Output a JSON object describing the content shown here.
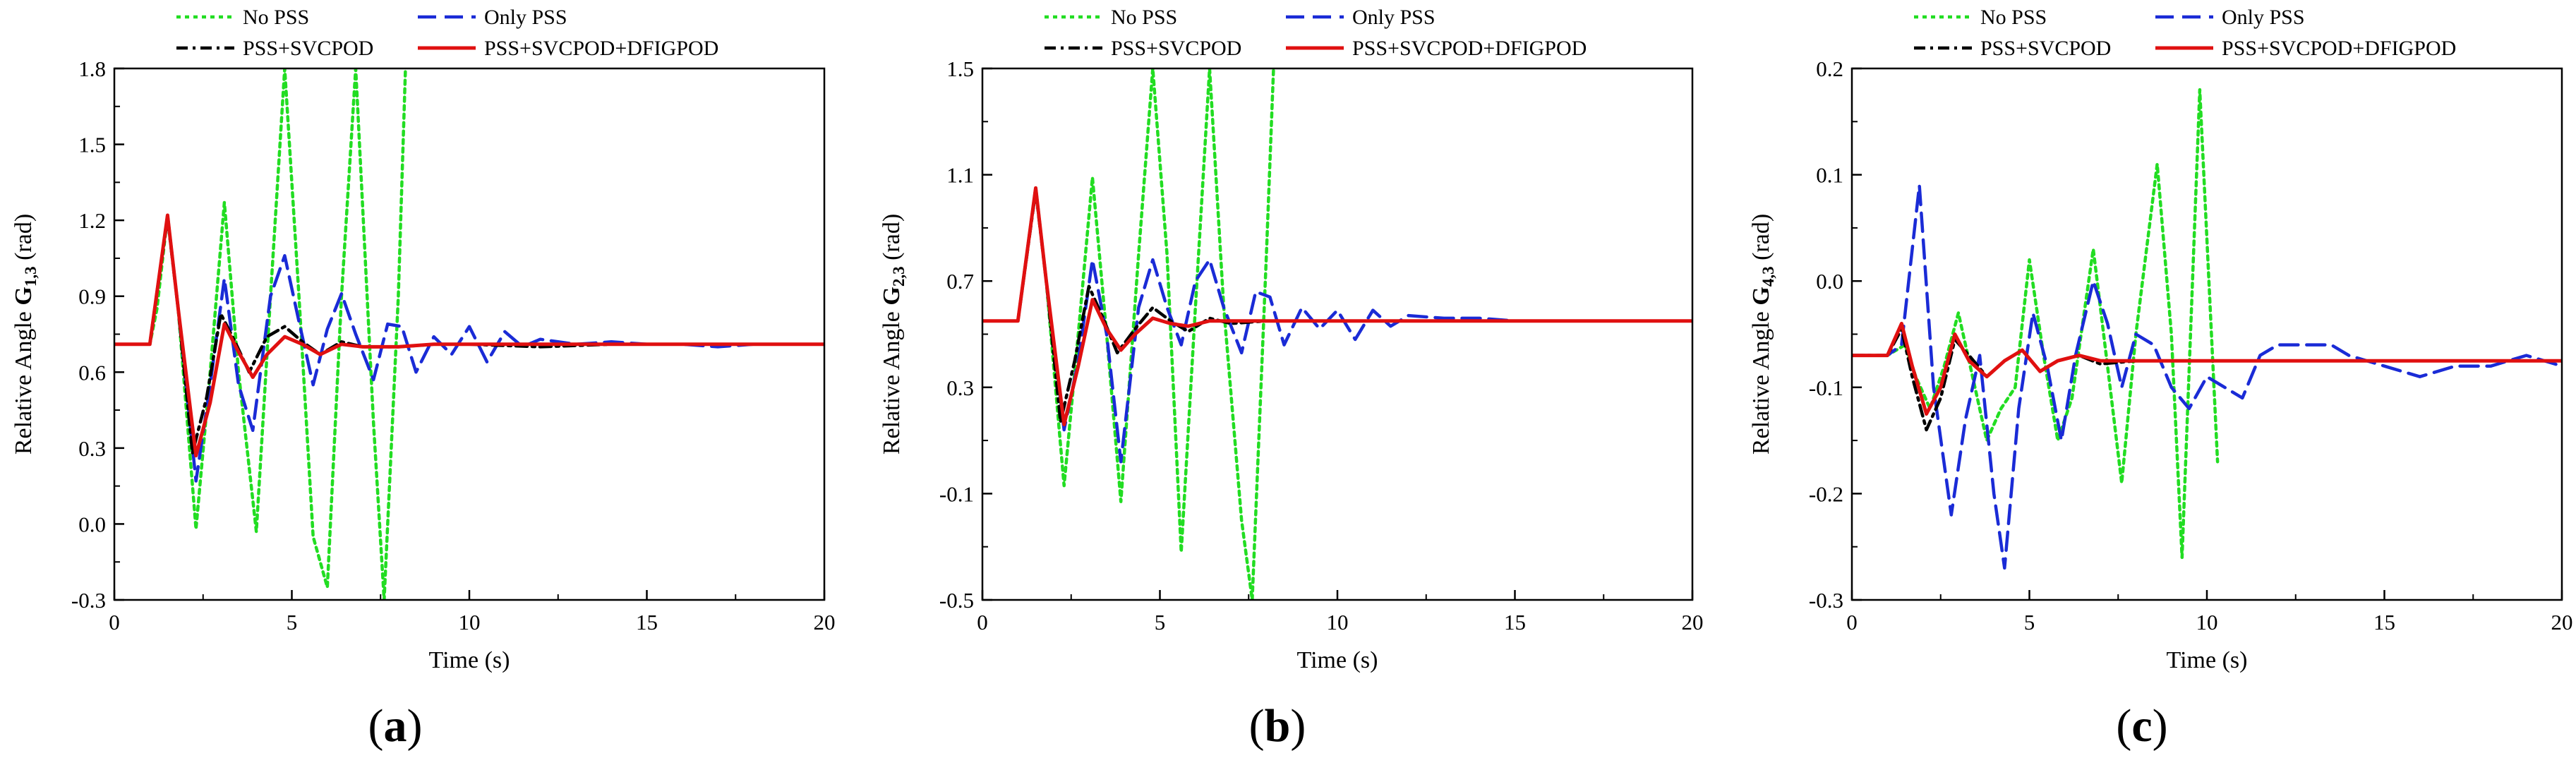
{
  "panel_labels": [
    "(a)",
    "(b)",
    "(c)"
  ],
  "legend": {
    "entries": [
      "No PSS",
      "Only PSS",
      "PSS+SVCPOD",
      "PSS+SVCPOD+DFIGPOD"
    ],
    "colors": [
      "#22dd22",
      "#1a2bd6",
      "#000000",
      "#e01010"
    ]
  },
  "chart_data": [
    {
      "type": "line",
      "title": "",
      "xlabel": "Time (s)",
      "ylabel": "Relative Angle G1,3 (rad)",
      "ylabel_parts": {
        "prefix": "Relative Angle ",
        "bold": "G",
        "sub": "1,3",
        "suffix": "  (rad)"
      },
      "xlim": [
        0,
        20
      ],
      "ylim": [
        -0.3,
        1.8
      ],
      "xticks": [
        "0",
        "5",
        "10",
        "15",
        "20"
      ],
      "yticks": [
        "-0.3",
        "0.0",
        "0.3",
        "0.6",
        "0.9",
        "1.2",
        "1.5",
        "1.8"
      ],
      "series": [
        {
          "name": "No PSS",
          "color": "#22dd22",
          "style": "dotted",
          "x": [
            0,
            1.0,
            1.2,
            1.5,
            1.8,
            2.3,
            2.7,
            3.1,
            3.5,
            4.0,
            4.4,
            4.8,
            5.2,
            5.6,
            6.0,
            6.4,
            6.8,
            7.3,
            7.6,
            8.0,
            8.2
          ],
          "y": [
            0.71,
            0.71,
            0.85,
            1.22,
            0.85,
            -0.02,
            0.6,
            1.27,
            0.6,
            -0.03,
            0.9,
            1.8,
            0.9,
            -0.05,
            -0.25,
            0.9,
            1.8,
            0.4,
            -0.3,
            0.9,
            1.8
          ]
        },
        {
          "name": "Only PSS",
          "color": "#1a2bd6",
          "style": "dashed",
          "x": [
            0,
            1.0,
            1.5,
            1.8,
            2.3,
            2.7,
            3.1,
            3.5,
            3.9,
            4.4,
            4.8,
            5.2,
            5.6,
            6.0,
            6.4,
            6.8,
            7.3,
            7.7,
            8.1,
            8.5,
            9.0,
            9.5,
            10.0,
            10.5,
            11.0,
            11.5,
            12.0,
            13.0,
            14.0,
            15.0,
            16.0,
            17.0,
            18.0,
            19.0,
            20.0
          ],
          "y": [
            0.71,
            0.71,
            1.22,
            0.85,
            0.17,
            0.55,
            0.97,
            0.55,
            0.37,
            0.9,
            1.06,
            0.8,
            0.55,
            0.77,
            0.91,
            0.75,
            0.57,
            0.79,
            0.78,
            0.6,
            0.74,
            0.67,
            0.78,
            0.64,
            0.76,
            0.7,
            0.73,
            0.71,
            0.72,
            0.71,
            0.71,
            0.7,
            0.71,
            0.71,
            0.71
          ]
        },
        {
          "name": "PSS+SVCPOD",
          "color": "#000000",
          "style": "dashdot",
          "x": [
            0,
            1.0,
            1.5,
            1.8,
            2.2,
            2.6,
            3.0,
            3.4,
            3.8,
            4.3,
            4.8,
            5.3,
            5.8,
            6.4,
            7.0,
            8.0,
            9.0,
            10.0,
            12.0,
            14.0,
            17.0,
            20.0
          ],
          "y": [
            0.71,
            0.71,
            1.21,
            0.85,
            0.28,
            0.5,
            0.83,
            0.72,
            0.6,
            0.74,
            0.78,
            0.72,
            0.67,
            0.72,
            0.7,
            0.7,
            0.71,
            0.71,
            0.7,
            0.71,
            0.71,
            0.71
          ]
        },
        {
          "name": "PSS+SVCPOD+DFIGPOD",
          "color": "#e01010",
          "style": "solid",
          "x": [
            0,
            1.0,
            1.5,
            1.8,
            2.3,
            2.7,
            3.1,
            3.5,
            3.9,
            4.3,
            4.8,
            5.3,
            5.8,
            6.4,
            7.0,
            8.0,
            9.0,
            10.0,
            12.0,
            14.0,
            17.0,
            20.0
          ],
          "y": [
            0.71,
            0.71,
            1.22,
            0.85,
            0.27,
            0.48,
            0.79,
            0.68,
            0.58,
            0.67,
            0.74,
            0.71,
            0.67,
            0.71,
            0.7,
            0.7,
            0.71,
            0.71,
            0.71,
            0.71,
            0.71,
            0.71
          ]
        }
      ]
    },
    {
      "type": "line",
      "title": "",
      "xlabel": "Time (s)",
      "ylabel": "Relative Angle G2,3 (rad)",
      "ylabel_parts": {
        "prefix": "Relative Angle ",
        "bold": "G",
        "sub": "2,3",
        "suffix": "  (rad)"
      },
      "xlim": [
        0,
        20
      ],
      "ylim": [
        -0.5,
        1.5
      ],
      "xticks": [
        "0",
        "5",
        "10",
        "15",
        "20"
      ],
      "yticks": [
        "-0.5",
        "-0.1",
        "0.3",
        "0.7",
        "1.1",
        "1.5"
      ],
      "series": [
        {
          "name": "No PSS",
          "color": "#22dd22",
          "style": "dotted",
          "x": [
            0,
            1.0,
            1.5,
            1.8,
            2.3,
            2.7,
            3.1,
            3.5,
            3.9,
            4.4,
            4.8,
            5.2,
            5.6,
            6.0,
            6.4,
            6.8,
            7.3,
            7.6,
            8.0,
            8.2
          ],
          "y": [
            0.55,
            0.55,
            1.05,
            0.7,
            -0.07,
            0.5,
            1.09,
            0.5,
            -0.13,
            0.8,
            1.5,
            0.8,
            -0.32,
            0.6,
            1.5,
            0.6,
            -0.2,
            -0.5,
            0.8,
            1.5
          ]
        },
        {
          "name": "Only PSS",
          "color": "#1a2bd6",
          "style": "dashed",
          "x": [
            0,
            1.0,
            1.5,
            1.8,
            2.3,
            2.7,
            3.1,
            3.5,
            3.9,
            4.4,
            4.8,
            5.2,
            5.6,
            6.0,
            6.4,
            6.8,
            7.3,
            7.7,
            8.1,
            8.5,
            9.0,
            9.5,
            10.0,
            10.5,
            11.0,
            11.5,
            12.0,
            13.0,
            14.0,
            15.0,
            16.0,
            17.0,
            18.0,
            19.0,
            20.0
          ],
          "y": [
            0.55,
            0.55,
            1.05,
            0.7,
            0.14,
            0.4,
            0.78,
            0.5,
            0.02,
            0.6,
            0.78,
            0.6,
            0.46,
            0.7,
            0.78,
            0.6,
            0.43,
            0.66,
            0.64,
            0.46,
            0.6,
            0.52,
            0.59,
            0.48,
            0.59,
            0.53,
            0.57,
            0.56,
            0.56,
            0.55,
            0.55,
            0.55,
            0.55,
            0.55,
            0.55
          ]
        },
        {
          "name": "PSS+SVCPOD",
          "color": "#000000",
          "style": "dashdot",
          "x": [
            0,
            1.0,
            1.5,
            1.8,
            2.2,
            2.6,
            3.0,
            3.4,
            3.8,
            4.3,
            4.8,
            5.3,
            5.8,
            6.4,
            7.0,
            8.0,
            9.0,
            10.0,
            12.0,
            14.0,
            17.0,
            20.0
          ],
          "y": [
            0.55,
            0.55,
            1.04,
            0.7,
            0.17,
            0.4,
            0.68,
            0.56,
            0.43,
            0.52,
            0.6,
            0.55,
            0.51,
            0.56,
            0.54,
            0.55,
            0.55,
            0.55,
            0.55,
            0.55,
            0.55,
            0.55
          ]
        },
        {
          "name": "PSS+SVCPOD+DFIGPOD",
          "color": "#e01010",
          "style": "solid",
          "x": [
            0,
            1.0,
            1.5,
            1.8,
            2.3,
            2.7,
            3.1,
            3.5,
            3.9,
            4.3,
            4.8,
            5.3,
            5.8,
            6.4,
            7.0,
            8.0,
            9.0,
            10.0,
            12.0,
            14.0,
            17.0,
            20.0
          ],
          "y": [
            0.55,
            0.55,
            1.05,
            0.7,
            0.16,
            0.38,
            0.63,
            0.52,
            0.44,
            0.5,
            0.56,
            0.54,
            0.53,
            0.55,
            0.55,
            0.55,
            0.55,
            0.55,
            0.55,
            0.55,
            0.55,
            0.55
          ]
        }
      ]
    },
    {
      "type": "line",
      "title": "",
      "xlabel": "Time (s)",
      "ylabel": "Relative Angle G4,3 (rad)",
      "ylabel_parts": {
        "prefix": "Relative Angle ",
        "bold": "G",
        "sub": "4,3",
        "suffix": "  (rad)"
      },
      "xlim": [
        0,
        20
      ],
      "ylim": [
        -0.3,
        0.2
      ],
      "xticks": [
        "0",
        "5",
        "10",
        "15",
        "20"
      ],
      "yticks": [
        "-0.3",
        "-0.2",
        "-0.1",
        "0.0",
        "0.1",
        "0.2"
      ],
      "series": [
        {
          "name": "No PSS",
          "color": "#22dd22",
          "style": "dotted",
          "x": [
            0,
            0.5,
            1.0,
            1.5,
            1.8,
            2.2,
            2.6,
            3.0,
            3.4,
            3.8,
            4.2,
            4.6,
            5.0,
            5.4,
            5.8,
            6.2,
            6.8,
            7.2,
            7.6,
            8.0,
            8.6,
            9.0,
            9.3,
            9.8,
            10.3
          ],
          "y": [
            -0.07,
            -0.07,
            -0.07,
            -0.06,
            -0.09,
            -0.12,
            -0.08,
            -0.03,
            -0.09,
            -0.15,
            -0.12,
            -0.1,
            0.02,
            -0.07,
            -0.15,
            -0.11,
            0.03,
            -0.08,
            -0.19,
            -0.05,
            0.11,
            -0.05,
            -0.26,
            0.18,
            -0.17
          ]
        },
        {
          "name": "Only PSS",
          "color": "#1a2bd6",
          "style": "dashed",
          "x": [
            0,
            0.5,
            1.0,
            1.4,
            1.9,
            2.3,
            2.8,
            3.2,
            3.6,
            4.0,
            4.3,
            4.7,
            5.1,
            5.5,
            5.9,
            6.3,
            6.8,
            7.2,
            7.6,
            8.0,
            8.5,
            9.0,
            9.5,
            10.0,
            10.5,
            11.0,
            11.5,
            12.0,
            13.0,
            13.5,
            14.0,
            15.0,
            16.0,
            17.0,
            18.0,
            19.0,
            20.0
          ],
          "y": [
            -0.07,
            -0.07,
            -0.07,
            -0.06,
            0.09,
            -0.1,
            -0.22,
            -0.13,
            -0.07,
            -0.2,
            -0.27,
            -0.12,
            -0.03,
            -0.08,
            -0.15,
            -0.07,
            0.0,
            -0.04,
            -0.1,
            -0.05,
            -0.06,
            -0.1,
            -0.12,
            -0.09,
            -0.1,
            -0.11,
            -0.07,
            -0.06,
            -0.06,
            -0.06,
            -0.07,
            -0.08,
            -0.09,
            -0.08,
            -0.08,
            -0.07,
            -0.08
          ]
        },
        {
          "name": "PSS+SVCPOD",
          "color": "#000000",
          "style": "dashdot",
          "x": [
            0,
            0.5,
            1.0,
            1.4,
            1.7,
            2.1,
            2.5,
            2.9,
            3.3,
            3.8,
            4.3,
            4.8,
            5.3,
            5.8,
            6.4,
            7.0,
            8.0,
            9.0,
            10.0,
            12.0,
            14.0,
            17.0,
            20.0
          ],
          "y": [
            -0.07,
            -0.07,
            -0.07,
            -0.045,
            -0.09,
            -0.14,
            -0.11,
            -0.055,
            -0.07,
            -0.09,
            -0.075,
            -0.065,
            -0.085,
            -0.075,
            -0.07,
            -0.078,
            -0.075,
            -0.075,
            -0.075,
            -0.075,
            -0.075,
            -0.075,
            -0.075
          ]
        },
        {
          "name": "PSS+SVCPOD+DFIGPOD",
          "color": "#e01010",
          "style": "solid",
          "x": [
            0,
            0.5,
            1.0,
            1.4,
            1.7,
            2.1,
            2.5,
            2.9,
            3.3,
            3.8,
            4.3,
            4.8,
            5.3,
            5.8,
            6.4,
            7.0,
            8.0,
            9.0,
            10.0,
            12.0,
            14.0,
            17.0,
            20.0
          ],
          "y": [
            -0.07,
            -0.07,
            -0.07,
            -0.04,
            -0.08,
            -0.125,
            -0.1,
            -0.05,
            -0.075,
            -0.09,
            -0.075,
            -0.065,
            -0.085,
            -0.075,
            -0.07,
            -0.075,
            -0.075,
            -0.075,
            -0.075,
            -0.075,
            -0.075,
            -0.075,
            -0.075
          ]
        }
      ]
    }
  ]
}
